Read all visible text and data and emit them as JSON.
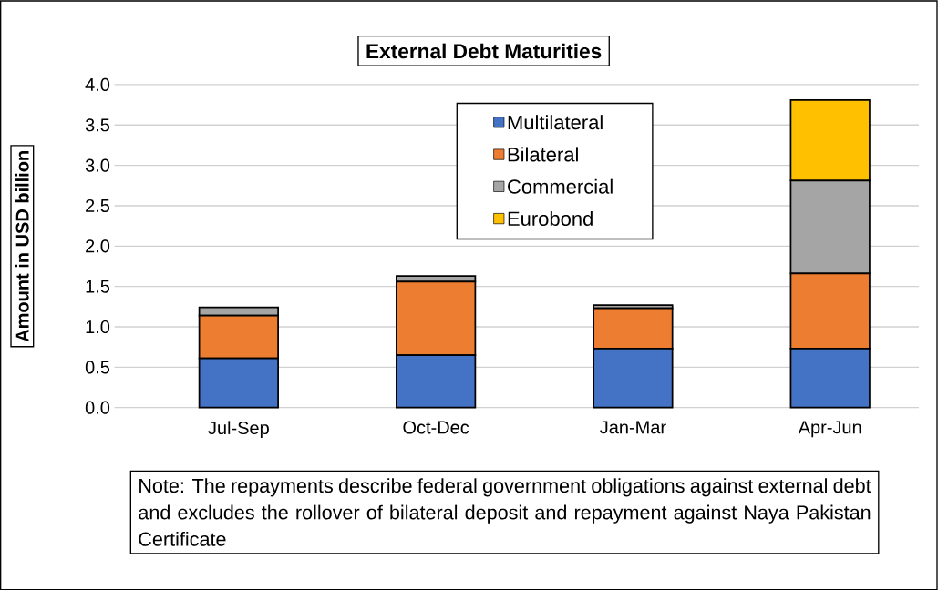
{
  "chart_data": {
    "type": "bar",
    "stacked": true,
    "title": "External Debt Maturities",
    "ylabel": "Amount in USD billion",
    "categories": [
      "Jul-Sep",
      "Oct-Dec",
      "Jan-Mar",
      "Apr-Jun"
    ],
    "series": [
      {
        "name": "Multilateral",
        "color": "#4472c4",
        "values": [
          0.61,
          0.65,
          0.73,
          0.73
        ]
      },
      {
        "name": "Bilateral",
        "color": "#ed7d31",
        "values": [
          0.53,
          0.91,
          0.5,
          0.93
        ]
      },
      {
        "name": "Commercial",
        "color": "#a5a5a5",
        "values": [
          0.1,
          0.07,
          0.04,
          1.15
        ]
      },
      {
        "name": "Eurobond",
        "color": "#ffc000",
        "values": [
          0,
          0,
          0,
          1.0
        ]
      }
    ],
    "ylim": [
      0,
      4.0
    ],
    "yticks": [
      {
        "value": 0,
        "label": "0.0"
      },
      {
        "value": 0.5,
        "label": "0.5"
      },
      {
        "value": 1,
        "label": "1.0"
      },
      {
        "value": 1.5,
        "label": "1.5"
      },
      {
        "value": 2,
        "label": "2.0"
      },
      {
        "value": 2.5,
        "label": "2.5"
      },
      {
        "value": 3,
        "label": "3.0"
      },
      {
        "value": 3.5,
        "label": "3.5"
      },
      {
        "value": 4,
        "label": "4.0"
      }
    ],
    "grid": "y",
    "legend": "top right",
    "annotations": [
      "Note: The repayments describe federal government obligations against external debt and excludes the rollover of bilateral deposit and repayment against Naya Pakistan Certificate"
    ]
  }
}
